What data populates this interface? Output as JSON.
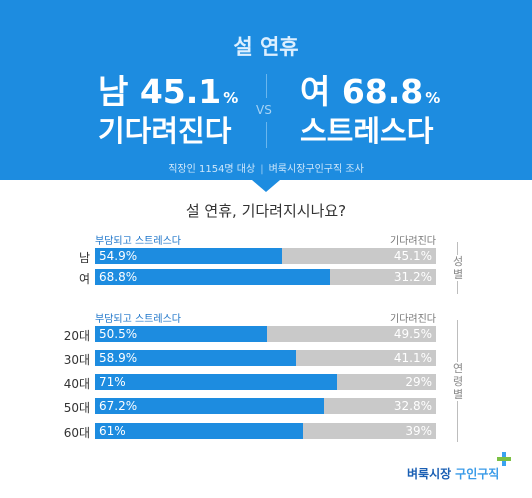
{
  "banner": {
    "title": "설 연휴",
    "left": {
      "head": "남 45.1",
      "pct": "%",
      "sub": "기다려진다"
    },
    "right": {
      "head": "여 68.8",
      "pct": "%",
      "sub": "스트레스다"
    },
    "vs": "VS",
    "source_left": "직장인 1154명 대상",
    "source_sep": "|",
    "source_right": "벼룩시장구인구직 조사"
  },
  "question": "설 연휴, 기다려지시나요?",
  "colors": {
    "banner": "#1d8ce0",
    "stress": "#1d8ce0",
    "wait": "#c9c9c9"
  },
  "chart_data": [
    {
      "type": "bar",
      "stacked": true,
      "orientation": "horizontal",
      "group_label": "성별",
      "legend_left": "부담되고 스트레스다",
      "legend_right": "기다려진다",
      "categories": [
        "남",
        "여"
      ],
      "series": [
        {
          "name": "부담되고 스트레스다",
          "values": [
            54.9,
            68.8
          ],
          "labels": [
            "54.9%",
            "68.8%"
          ]
        },
        {
          "name": "기다려진다",
          "values": [
            45.1,
            31.2
          ],
          "labels": [
            "45.1%",
            "31.2%"
          ]
        }
      ]
    },
    {
      "type": "bar",
      "stacked": true,
      "orientation": "horizontal",
      "group_label": "연령별",
      "legend_left": "부담되고 스트레스다",
      "legend_right": "기다려진다",
      "categories": [
        "20대",
        "30대",
        "40대",
        "50대",
        "60대"
      ],
      "series": [
        {
          "name": "부담되고 스트레스다",
          "values": [
            50.5,
            58.9,
            71,
            67.2,
            61
          ],
          "labels": [
            "50.5%",
            "58.9%",
            "71%",
            "67.2%",
            "61%"
          ]
        },
        {
          "name": "기다려진다",
          "values": [
            49.5,
            41.1,
            29,
            32.8,
            39
          ],
          "labels": [
            "49.5%",
            "41.1%",
            "29%",
            "32.8%",
            "39%"
          ]
        }
      ]
    }
  ],
  "logo": {
    "part1": "벼룩시장",
    "part2": "구인구직",
    "plus_icon": "plus-icon"
  }
}
